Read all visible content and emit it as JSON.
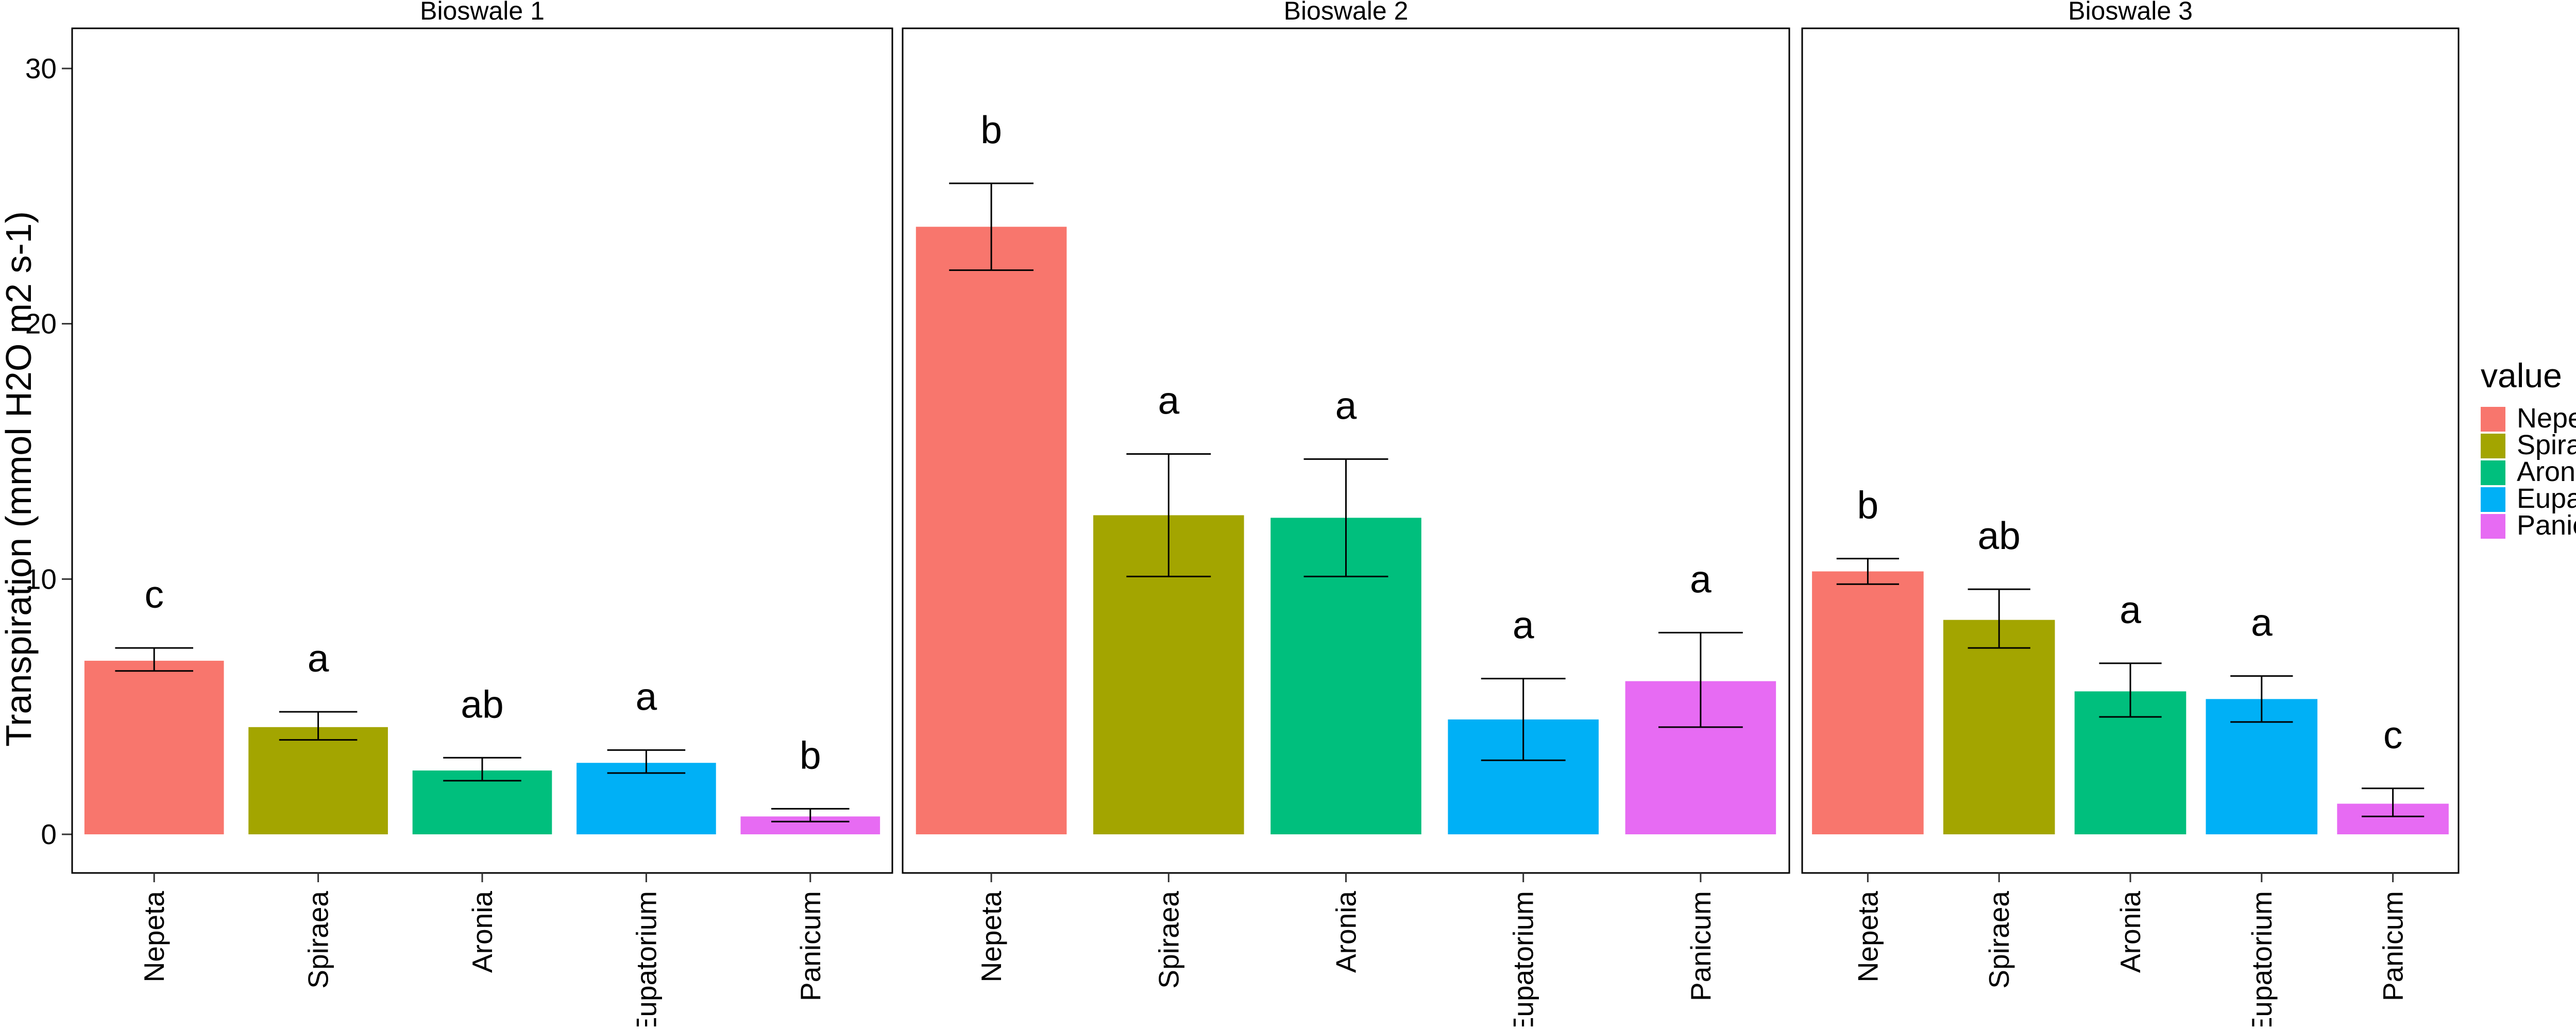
{
  "chart_data": {
    "type": "bar",
    "ylabel": "Transpiration (mmol H2O m2 s-1)",
    "xlabel": "",
    "ylim": [
      0,
      30
    ],
    "y_ticks": [
      0,
      10,
      20,
      30
    ],
    "grid": false,
    "legend": {
      "title": "value",
      "position": "right",
      "entries": [
        "Nepeta",
        "Spiraea",
        "Aronia",
        "Eupatorium",
        "Panicum"
      ]
    },
    "colors": {
      "Nepeta": "#F8766D",
      "Spiraea": "#A3A500",
      "Aronia": "#00BF7D",
      "Eupatorium": "#00B0F6",
      "Panicum": "#E76BF3"
    },
    "categories": [
      "Nepeta",
      "Spiraea",
      "Aronia",
      "Eupatorium",
      "Panicum"
    ],
    "panels": [
      {
        "title": "Bioswale 1",
        "values": [
          6.8,
          4.2,
          2.5,
          2.8,
          0.7
        ],
        "err_low": [
          6.4,
          3.7,
          2.1,
          2.4,
          0.5
        ],
        "err_high": [
          7.3,
          4.8,
          3.0,
          3.3,
          1.0
        ],
        "letters": [
          "c",
          "a",
          "ab",
          "a",
          "b"
        ]
      },
      {
        "title": "Bioswale 2",
        "values": [
          23.8,
          12.5,
          12.4,
          4.5,
          6.0
        ],
        "err_low": [
          22.1,
          10.1,
          10.1,
          2.9,
          4.2
        ],
        "err_high": [
          25.5,
          14.9,
          14.7,
          6.1,
          7.9
        ],
        "letters": [
          "b",
          "a",
          "a",
          "a",
          "a"
        ]
      },
      {
        "title": "Bioswale 3",
        "values": [
          10.3,
          8.4,
          5.6,
          5.3,
          1.2
        ],
        "err_low": [
          9.8,
          7.3,
          4.6,
          4.4,
          0.7
        ],
        "err_high": [
          10.8,
          9.6,
          6.7,
          6.2,
          1.8
        ],
        "letters": [
          "b",
          "ab",
          "a",
          "a",
          "c"
        ]
      }
    ]
  }
}
